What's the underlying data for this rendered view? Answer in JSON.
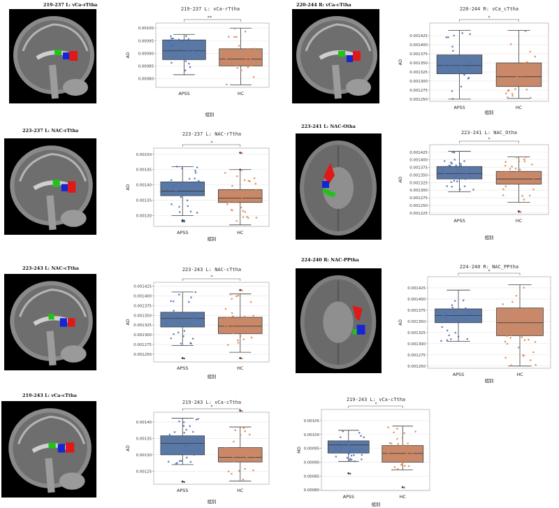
{
  "colors": {
    "apss": "#4c72b0",
    "hc": "#dd8452",
    "apss_box": "#5a78a6",
    "hc_box": "#c8896a"
  },
  "brain_titles": [
    "219-237 L: vCa-rTtha",
    "220-244 R: vCa-cTtha",
    "223-237 L: NAC-rTtha",
    "223-241 L: NAC-Otha",
    "223-243 L: NAC-cTtha",
    "224-240 R: NAC-PPtha",
    "219-243 L: vCa-cTtha"
  ],
  "chart_data": [
    {
      "type": "box",
      "title": "219-237 L: vCa-rTtha",
      "xlabel": "组别",
      "ylabel": "AD",
      "categories": [
        "APSS",
        "HC"
      ],
      "ylim": [
        0.000765,
        0.00102
      ],
      "yticks": [
        0.0008,
        0.00085,
        0.0009,
        0.00095,
        0.001
      ],
      "ytick_labels": [
        "0.00080",
        "0.00085",
        "0.00090",
        "0.00095",
        "0.00100"
      ],
      "significance": "**",
      "boxes": [
        {
          "q1": 0.000875,
          "median": 0.00091,
          "q3": 0.000953,
          "whisker_low": 0.000815,
          "whisker_high": 0.000975,
          "outliers": []
        },
        {
          "q1": 0.00085,
          "median": 0.000877,
          "q3": 0.000918,
          "whisker_low": 0.000775,
          "whisker_high": 0.001,
          "outliers": []
        }
      ]
    },
    {
      "type": "box",
      "title": "220-244 R: vCa_cTtha",
      "xlabel": "组别",
      "ylabel": "AD",
      "categories": [
        "APSS",
        "HC"
      ],
      "ylim": [
        0.001244,
        0.00146
      ],
      "yticks": [
        0.00125,
        0.001275,
        0.0013,
        0.001325,
        0.00135,
        0.001375,
        0.0014,
        0.001425
      ],
      "ytick_labels": [
        "0.001250",
        "0.001275",
        "0.001300",
        "0.001325",
        "0.001350",
        "0.001375",
        "0.001400",
        "0.001425"
      ],
      "significance": "*",
      "boxes": [
        {
          "q1": 0.00132,
          "median": 0.001343,
          "q3": 0.001372,
          "whisker_low": 0.00125,
          "whisker_high": 0.00144,
          "outliers": []
        },
        {
          "q1": 0.001285,
          "median": 0.001312,
          "q3": 0.00135,
          "whisker_low": 0.001252,
          "whisker_high": 0.00144,
          "outliers": []
        }
      ]
    },
    {
      "type": "box",
      "title": "223-237 L: NAC-rTtha",
      "xlabel": "组别",
      "ylabel": "AD",
      "categories": [
        "APSS",
        "HC"
      ],
      "ylim": [
        0.001265,
        0.00152
      ],
      "yticks": [
        0.0013,
        0.00135,
        0.0014,
        0.00145,
        0.0015
      ],
      "ytick_labels": [
        "0.00130",
        "0.00135",
        "0.00140",
        "0.00145",
        "0.00150"
      ],
      "significance": "*",
      "boxes": [
        {
          "q1": 0.001365,
          "median": 0.00138,
          "q3": 0.00141,
          "whisker_low": 0.0013,
          "whisker_high": 0.00146,
          "outliers": [
            0.001285,
            0.001282
          ]
        },
        {
          "q1": 0.001343,
          "median": 0.001357,
          "q3": 0.001385,
          "whisker_low": 0.00127,
          "whisker_high": 0.00145,
          "outliers": [
            0.001505,
            0.00145
          ]
        }
      ]
    },
    {
      "type": "box",
      "title": "223-241 L: NAC_Otha",
      "xlabel": "组别",
      "ylabel": "AD",
      "categories": [
        "APSS",
        "HC"
      ],
      "ylim": [
        0.00122,
        0.00145
      ],
      "yticks": [
        0.001225,
        0.00125,
        0.001275,
        0.0013,
        0.001325,
        0.00135,
        0.001375,
        0.0014,
        0.001425
      ],
      "ytick_labels": [
        "0.001225",
        "0.001250",
        "0.001275",
        "0.001300",
        "0.001325",
        "0.001350",
        "0.001375",
        "0.001400",
        "0.001425"
      ],
      "significance": "*",
      "boxes": [
        {
          "q1": 0.001337,
          "median": 0.001355,
          "q3": 0.001378,
          "whisker_low": 0.001295,
          "whisker_high": 0.001428,
          "outliers": []
        },
        {
          "q1": 0.00132,
          "median": 0.001337,
          "q3": 0.001362,
          "whisker_low": 0.00126,
          "whisker_high": 0.00141,
          "outliers": [
            0.00123,
            0.00123
          ]
        }
      ]
    },
    {
      "type": "box",
      "title": "223-243 L: NAC-cTtha",
      "xlabel": "组别",
      "ylabel": "AD",
      "categories": [
        "APSS",
        "HC"
      ],
      "ylim": [
        0.00123,
        0.001435
      ],
      "yticks": [
        0.00125,
        0.001275,
        0.0013,
        0.001325,
        0.00135,
        0.001375,
        0.0014,
        0.001425
      ],
      "ytick_labels": [
        "0.001250",
        "0.001275",
        "0.001300",
        "0.001325",
        "0.001350",
        "0.001375",
        "0.001400",
        "0.001425"
      ],
      "significance": "*",
      "boxes": [
        {
          "q1": 0.00132,
          "median": 0.001342,
          "q3": 0.001358,
          "whisker_low": 0.001272,
          "whisker_high": 0.00141,
          "outliers": [
            0.00124
          ]
        },
        {
          "q1": 0.001303,
          "median": 0.001322,
          "q3": 0.001345,
          "whisker_low": 0.001255,
          "whisker_high": 0.001405,
          "outliers": [
            0.00124,
            0.001415
          ]
        }
      ]
    },
    {
      "type": "box",
      "title": "224-240 R: NAC_PPtha",
      "xlabel": "组别",
      "ylabel": "AD",
      "categories": [
        "APSS",
        "HC"
      ],
      "ylim": [
        0.001245,
        0.00145
      ],
      "yticks": [
        0.00125,
        0.001275,
        0.0013,
        0.001325,
        0.00135,
        0.001375,
        0.0014,
        0.001425
      ],
      "ytick_labels": [
        "0.001250",
        "0.001275",
        "0.001300",
        "0.001325",
        "0.001350",
        "0.001375",
        "0.001400",
        "0.001425"
      ],
      "significance": "*",
      "boxes": [
        {
          "q1": 0.001347,
          "median": 0.001363,
          "q3": 0.001378,
          "whisker_low": 0.001305,
          "whisker_high": 0.00142,
          "outliers": []
        },
        {
          "q1": 0.001318,
          "median": 0.001347,
          "q3": 0.00138,
          "whisker_low": 0.00125,
          "whisker_high": 0.001432,
          "outliers": []
        }
      ]
    },
    {
      "type": "box",
      "title": "219-243 L: vCa-cTtha",
      "xlabel": "组别",
      "ylabel": "AD",
      "categories": [
        "APSS",
        "HC"
      ],
      "ylim": [
        0.00121,
        0.00143
      ],
      "yticks": [
        0.00125,
        0.0013,
        0.00135,
        0.0014
      ],
      "ytick_labels": [
        "0.00125",
        "0.00130",
        "0.00135",
        "0.00140"
      ],
      "significance": "*",
      "boxes": [
        {
          "q1": 0.0013,
          "median": 0.001335,
          "q3": 0.001358,
          "whisker_low": 0.00127,
          "whisker_high": 0.001412,
          "outliers": [
            0.001218,
            0.001218
          ]
        },
        {
          "q1": 0.001278,
          "median": 0.001292,
          "q3": 0.001322,
          "whisker_low": 0.00122,
          "whisker_high": 0.001385,
          "outliers": [
            0.001435
          ]
        }
      ]
    },
    {
      "type": "box",
      "title": "219-243 L: vCa-cTtha",
      "xlabel": "组别",
      "ylabel": "MD",
      "categories": [
        "APSS",
        "HC"
      ],
      "ylim": [
        0.000798,
        0.00109
      ],
      "yticks": [
        0.0008,
        0.00085,
        0.0009,
        0.00095,
        0.001,
        0.00105
      ],
      "ytick_labels": [
        "0.00080",
        "0.00085",
        "0.00090",
        "0.00095",
        "0.00100",
        "0.00105"
      ],
      "significance": "*",
      "boxes": [
        {
          "q1": 0.000933,
          "median": 0.000962,
          "q3": 0.000977,
          "whisker_low": 0.000903,
          "whisker_high": 0.001015,
          "outliers": [
            0.00086
          ]
        },
        {
          "q1": 0.0009,
          "median": 0.000932,
          "q3": 0.00096,
          "whisker_low": 0.000872,
          "whisker_high": 0.00103,
          "outliers": [
            0.00081
          ]
        }
      ]
    }
  ]
}
